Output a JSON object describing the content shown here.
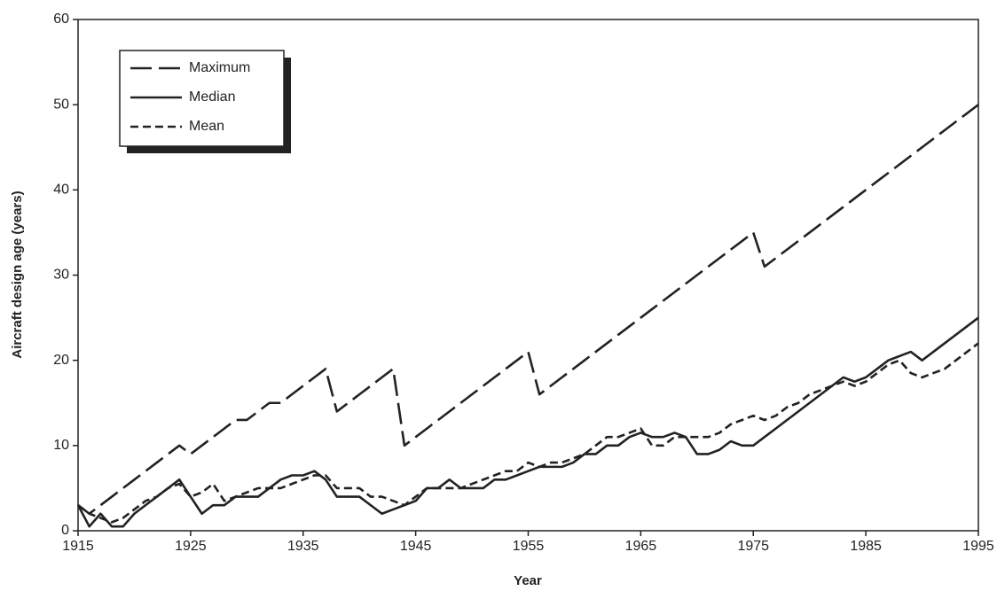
{
  "chart_data": {
    "type": "line",
    "xlabel": "Year",
    "ylabel": "Aircraft design age (years)",
    "x": [
      1915,
      1916,
      1917,
      1918,
      1919,
      1920,
      1921,
      1922,
      1923,
      1924,
      1925,
      1926,
      1927,
      1928,
      1929,
      1930,
      1931,
      1932,
      1933,
      1934,
      1935,
      1936,
      1937,
      1938,
      1939,
      1940,
      1941,
      1942,
      1943,
      1944,
      1945,
      1946,
      1947,
      1948,
      1949,
      1950,
      1951,
      1952,
      1953,
      1954,
      1955,
      1956,
      1957,
      1958,
      1959,
      1960,
      1961,
      1962,
      1963,
      1964,
      1965,
      1966,
      1967,
      1968,
      1969,
      1970,
      1971,
      1972,
      1973,
      1974,
      1975,
      1976,
      1977,
      1978,
      1979,
      1980,
      1981,
      1982,
      1983,
      1984,
      1985,
      1986,
      1987,
      1988,
      1989,
      1990,
      1991,
      1992,
      1993,
      1994,
      1995
    ],
    "series": [
      {
        "name": "Maximum",
        "color": "#222222",
        "line_style": "long-dash",
        "values": [
          3,
          2,
          3,
          4,
          5,
          6,
          7,
          8,
          9,
          10,
          9,
          10,
          11,
          12,
          13,
          13,
          14,
          15,
          15,
          16,
          17,
          18,
          19,
          14,
          15,
          16,
          17,
          18,
          19,
          10,
          11,
          12,
          13,
          14,
          15,
          16,
          17,
          18,
          19,
          20,
          21,
          16,
          17,
          18,
          19,
          20,
          21,
          22,
          23,
          24,
          25,
          26,
          27,
          28,
          29,
          30,
          31,
          32,
          33,
          34,
          35,
          31,
          32,
          33,
          34,
          35,
          36,
          37,
          38,
          39,
          40,
          41,
          42,
          43,
          44,
          45,
          46,
          47,
          48,
          49,
          50
        ]
      },
      {
        "name": "Median",
        "color": "#222222",
        "line_style": "solid",
        "values": [
          3,
          0.5,
          2,
          0.5,
          0.5,
          2,
          3,
          4,
          5,
          6,
          4,
          2,
          3,
          3,
          4,
          4,
          4,
          5,
          6,
          6.5,
          6.5,
          7,
          6,
          4,
          4,
          4,
          3,
          2,
          2.5,
          3,
          3.5,
          5,
          5,
          6,
          5,
          5,
          5,
          6,
          6,
          6.5,
          7,
          7.5,
          7.5,
          7.5,
          8,
          9,
          9,
          10,
          10,
          11,
          11.5,
          11,
          11,
          11.5,
          11,
          9,
          9,
          9.5,
          10.5,
          10,
          10,
          11,
          12,
          13,
          14,
          15,
          16,
          17,
          18,
          17.5,
          18,
          19,
          20,
          20.5,
          21,
          20,
          21,
          22,
          23,
          24,
          25
        ]
      },
      {
        "name": "Mean",
        "color": "#222222",
        "line_style": "short-dash",
        "values": [
          3,
          2,
          1.5,
          1,
          1.5,
          2.5,
          3.5,
          4,
          5,
          5.5,
          4,
          4.5,
          5.5,
          3.5,
          4,
          4.5,
          5,
          5,
          5,
          5.5,
          6,
          6.5,
          6.5,
          5,
          5,
          5,
          4,
          4,
          3.5,
          3,
          4,
          5,
          5,
          5,
          5,
          5.5,
          6,
          6.5,
          7,
          7,
          8,
          7.5,
          8,
          8,
          8.5,
          9,
          10,
          11,
          11,
          11.5,
          12,
          10,
          10,
          11,
          11,
          11,
          11,
          11.5,
          12.5,
          13,
          13.5,
          13,
          13.5,
          14.5,
          15,
          16,
          16.5,
          17,
          17.5,
          17,
          17.5,
          18.5,
          19.5,
          20,
          18.5,
          18,
          18.5,
          19,
          20,
          21,
          22
        ]
      }
    ],
    "xlim": [
      1915,
      1995
    ],
    "xticks": [
      1915,
      1925,
      1935,
      1945,
      1955,
      1965,
      1975,
      1985,
      1995
    ],
    "ylim": [
      0,
      60
    ],
    "yticks": [
      0,
      10,
      20,
      30,
      40,
      50,
      60
    ],
    "legend": "upper left",
    "grid": false
  }
}
